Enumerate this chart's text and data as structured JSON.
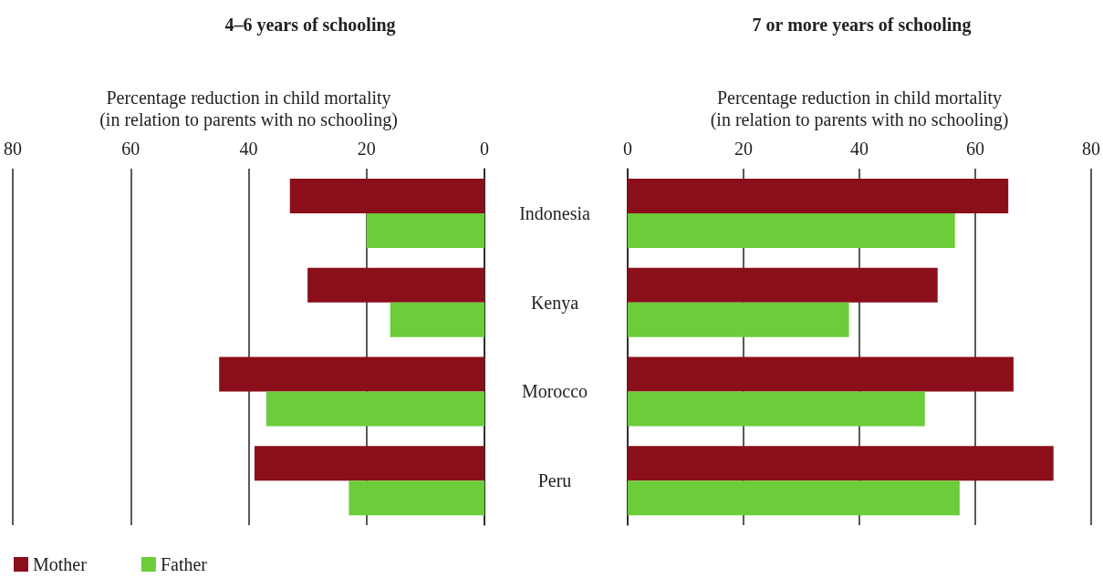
{
  "chart_data": [
    {
      "type": "bar",
      "orientation": "horizontal",
      "title": "4–6 years of schooling",
      "xlabel": "Percentage reduction in child mortality\n(in relation to parents with no schooling)",
      "categories": [
        "Indonesia",
        "Kenya",
        "Morocco",
        "Peru"
      ],
      "series": [
        {
          "name": "Mother",
          "color": "#8b0f1a",
          "values": [
            33,
            30,
            45,
            39
          ]
        },
        {
          "name": "Father",
          "color": "#6ccc3a",
          "values": [
            20,
            16,
            37,
            23
          ]
        }
      ],
      "xlim": [
        80,
        0
      ],
      "xticks": [
        80,
        60,
        40,
        20,
        0
      ],
      "grid": "x",
      "legend": "bottom left"
    },
    {
      "type": "bar",
      "orientation": "horizontal",
      "title": "7 or more years of schooling",
      "xlabel": "Percentage reduction in child mortality\n(in relation to parents with no schooling)",
      "categories": [
        null,
        null,
        null,
        null
      ],
      "series": [
        {
          "color": "#8b0f1a",
          "values": [
            65.7,
            53.5,
            66.6,
            73.5
          ]
        },
        {
          "color": "#6ccc3a",
          "values": [
            56.5,
            38.2,
            51.3,
            57.3
          ]
        }
      ],
      "xlim": [
        0,
        80
      ],
      "xticks": [
        0,
        20,
        40,
        60,
        80
      ],
      "grid": "x",
      "tick_labels": "x"
    }
  ]
}
